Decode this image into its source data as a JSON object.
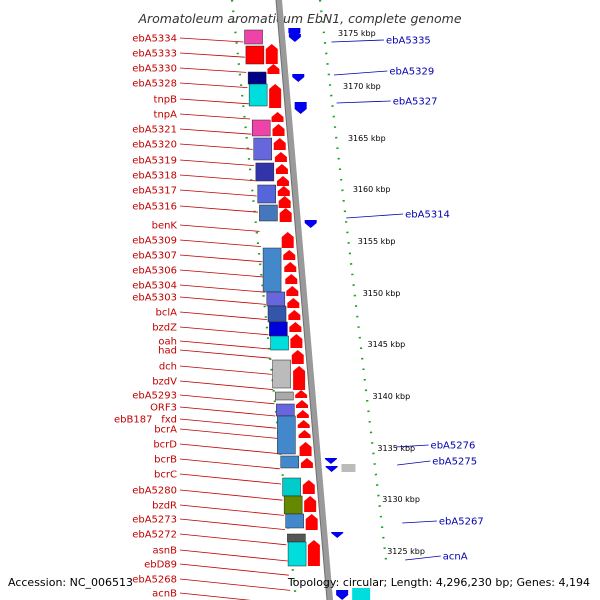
{
  "title": "Aromatoleum aromaticum EbN1, complete genome",
  "footer": {
    "accession": "Accession: NC_006513",
    "topology": "Topology: circular; Length: 4,296,230 bp; Genes: 4,194"
  },
  "colors": {
    "forward": "#ff0000",
    "reverse": "#0000ee",
    "label_left": "#c00000",
    "label_right": "#0000b0",
    "backbone": "#9a9a9a",
    "tick": "#22a022"
  },
  "ticks": [
    "3175 kbp",
    "3170 kbp",
    "3165 kbp",
    "3160 kbp",
    "3155 kbp",
    "3150 kbp",
    "3145 kbp",
    "3140 kbp",
    "3135 kbp",
    "3130 kbp",
    "3125 kbp"
  ],
  "left_labels": [
    "ebA5334",
    "ebA5333",
    "ebA5330",
    "ebA5328",
    "tnpB",
    "tnpA",
    "ebA5321",
    "ebA5320",
    "ebA5319",
    "ebA5318",
    "ebA5317",
    "ebA5316",
    "benK",
    "ebA5309",
    "ebA5307",
    "ebA5306",
    "ebA5304",
    "ebA5303",
    "bclA",
    "bzdZ",
    "oah",
    "had",
    "dch",
    "bzdV",
    "ebA5293",
    "ORF3",
    "fxd",
    "bcrA",
    "bcrD",
    "bcrB",
    "bcrC",
    "ebA5280",
    "bzdR",
    "ebA5273",
    "ebA5272",
    "asnB",
    "ebD89",
    "ebA5268",
    "acnB"
  ],
  "left_label_extra": "ebB187",
  "right_labels": [
    "ebA5335",
    "ebA5329",
    "ebA5327",
    "ebA5314",
    "ebA5276",
    "ebA5275",
    "ebA5267",
    "acnA"
  ]
}
